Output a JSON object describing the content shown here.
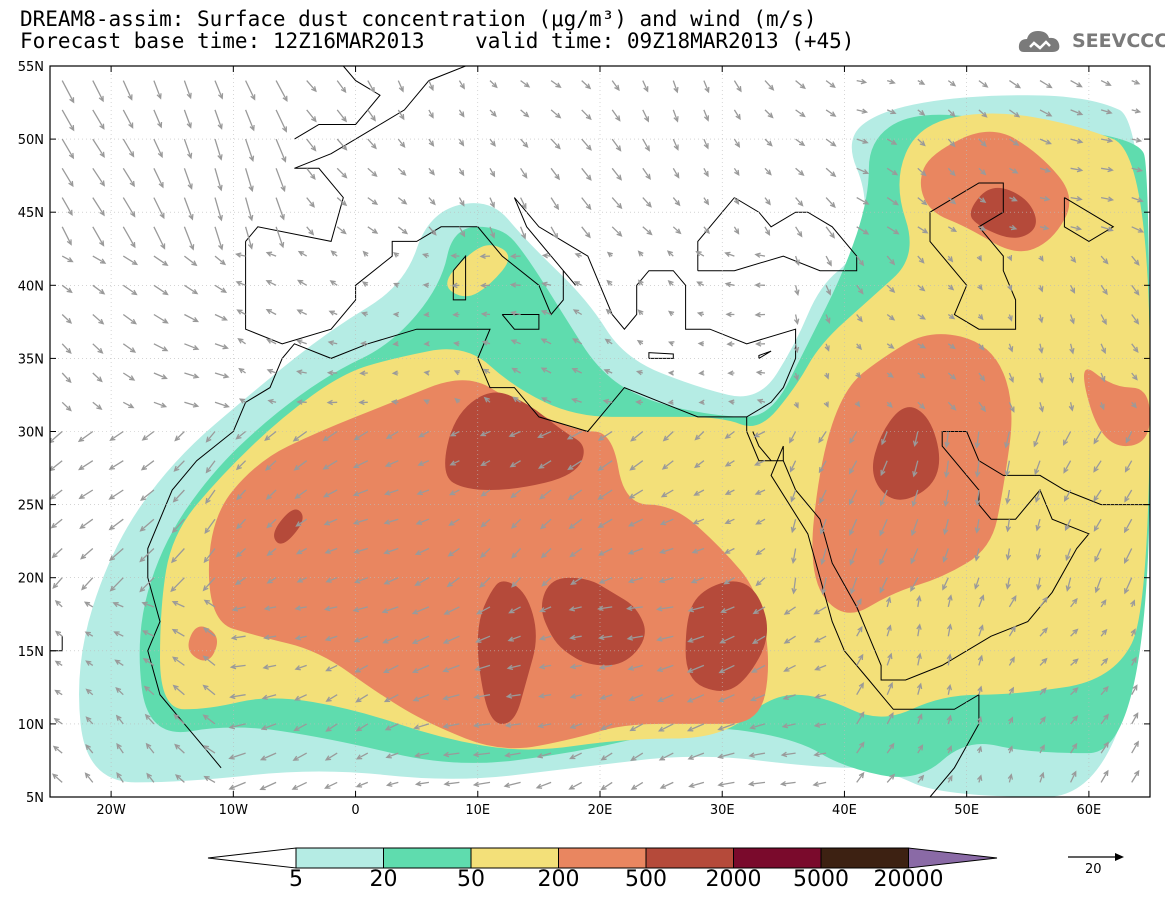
{
  "title": {
    "line1": "DREAM8-assim: Surface dust concentration (μg/m³) and wind (m/s)",
    "line2": "Forecast base time: 12Z16MAR2013    valid time: 09Z18MAR2013 (+45)"
  },
  "logo": {
    "text": "SEEVCCC",
    "icon": "cloud-icon"
  },
  "axes": {
    "lon_range": [
      -25,
      65
    ],
    "lat_range": [
      5,
      55
    ],
    "lon_ticks": [
      {
        "value": -20,
        "label": "20W"
      },
      {
        "value": -10,
        "label": "10W"
      },
      {
        "value": 0,
        "label": "0"
      },
      {
        "value": 10,
        "label": "10E"
      },
      {
        "value": 20,
        "label": "20E"
      },
      {
        "value": 30,
        "label": "30E"
      },
      {
        "value": 40,
        "label": "40E"
      },
      {
        "value": 50,
        "label": "50E"
      },
      {
        "value": 60,
        "label": "60E"
      }
    ],
    "lat_ticks": [
      {
        "value": 5,
        "label": "5N"
      },
      {
        "value": 10,
        "label": "10N"
      },
      {
        "value": 15,
        "label": "15N"
      },
      {
        "value": 20,
        "label": "20N"
      },
      {
        "value": 25,
        "label": "25N"
      },
      {
        "value": 30,
        "label": "30N"
      },
      {
        "value": 35,
        "label": "35N"
      },
      {
        "value": 40,
        "label": "40N"
      },
      {
        "value": 45,
        "label": "45N"
      },
      {
        "value": 50,
        "label": "50N"
      },
      {
        "value": 55,
        "label": "55N"
      }
    ]
  },
  "colorbar": {
    "bins": [
      {
        "color": "#b5ece4"
      },
      {
        "color": "#5fdcae"
      },
      {
        "color": "#f3e079"
      },
      {
        "color": "#e98660"
      },
      {
        "color": "#b54a3a"
      },
      {
        "color": "#7a0a2c"
      },
      {
        "color": "#3d2112"
      }
    ],
    "under_color": "#ffffff",
    "over_color": "#8a6aa6",
    "labels": [
      "5",
      "20",
      "50",
      "200",
      "500",
      "2000",
      "5000",
      "20000"
    ]
  },
  "wind_reference": {
    "label": "20",
    "icon": "arrow-right-icon"
  },
  "dust_levels": [
    {
      "color": "#b5ece4",
      "regions": [
        [
          [
            -22,
            6
          ],
          [
            -23,
            14
          ],
          [
            -20,
            22
          ],
          [
            -15,
            28
          ],
          [
            -8,
            33
          ],
          [
            -2,
            37
          ],
          [
            4,
            40
          ],
          [
            6,
            45
          ],
          [
            11,
            46
          ],
          [
            14,
            43
          ],
          [
            19,
            39
          ],
          [
            22,
            35
          ],
          [
            28,
            33
          ],
          [
            33,
            32
          ],
          [
            36,
            36
          ],
          [
            38,
            40
          ],
          [
            41,
            42
          ],
          [
            42,
            46
          ],
          [
            40,
            50
          ],
          [
            43,
            52
          ],
          [
            50,
            53
          ],
          [
            60,
            53
          ],
          [
            65,
            51
          ],
          [
            65,
            5
          ],
          [
            48,
            5
          ],
          [
            43,
            7
          ],
          [
            38,
            7
          ],
          [
            28,
            8
          ],
          [
            18,
            7
          ],
          [
            8,
            6
          ],
          [
            -3,
            7
          ],
          [
            -14,
            6
          ]
        ]
      ]
    },
    {
      "color": "#5fdcae",
      "regions": [
        [
          [
            -17,
            9
          ],
          [
            -18,
            16
          ],
          [
            -16,
            22
          ],
          [
            -12,
            27
          ],
          [
            -7,
            31
          ],
          [
            -2,
            34
          ],
          [
            3,
            36
          ],
          [
            7,
            40
          ],
          [
            8,
            44
          ],
          [
            12,
            44
          ],
          [
            14,
            42
          ],
          [
            17,
            38
          ],
          [
            20,
            34
          ],
          [
            24,
            32
          ],
          [
            30,
            31
          ],
          [
            34,
            31
          ],
          [
            37,
            36
          ],
          [
            40,
            41
          ],
          [
            42,
            46
          ],
          [
            42,
            50
          ],
          [
            46,
            52
          ],
          [
            55,
            51
          ],
          [
            64,
            50
          ],
          [
            65,
            48
          ],
          [
            65,
            8
          ],
          [
            55,
            8
          ],
          [
            50,
            9
          ],
          [
            46,
            6
          ],
          [
            40,
            7
          ],
          [
            36,
            9
          ],
          [
            28,
            10
          ],
          [
            18,
            8
          ],
          [
            8,
            7
          ],
          [
            -2,
            9
          ],
          [
            -10,
            10
          ]
        ]
      ]
    },
    {
      "color": "#f3e079",
      "regions": [
        [
          [
            -16,
            11
          ],
          [
            -16,
            18
          ],
          [
            -15,
            23
          ],
          [
            -11,
            27
          ],
          [
            -6,
            31
          ],
          [
            -1,
            34
          ],
          [
            3,
            35
          ],
          [
            9,
            36
          ],
          [
            13,
            33
          ],
          [
            18,
            31
          ],
          [
            24,
            31
          ],
          [
            30,
            31
          ],
          [
            33,
            30
          ],
          [
            36,
            33
          ],
          [
            38,
            36
          ],
          [
            42,
            39
          ],
          [
            46,
            42
          ],
          [
            44,
            47
          ],
          [
            46,
            51
          ],
          [
            52,
            52
          ],
          [
            59,
            51
          ],
          [
            65,
            49
          ],
          [
            65,
            18
          ],
          [
            62,
            13
          ],
          [
            54,
            12
          ],
          [
            48,
            12
          ],
          [
            43,
            10
          ],
          [
            38,
            12
          ],
          [
            34,
            12
          ],
          [
            30,
            9
          ],
          [
            22,
            9
          ],
          [
            14,
            8
          ],
          [
            7,
            9
          ],
          [
            0,
            11
          ],
          [
            -7,
            12
          ],
          [
            -12,
            11
          ]
        ],
        [
          [
            7,
            40
          ],
          [
            9,
            42
          ],
          [
            11,
            43
          ],
          [
            13,
            42
          ],
          [
            11,
            40
          ],
          [
            9,
            39
          ]
        ]
      ]
    },
    {
      "color": "#e98660",
      "regions": [
        [
          [
            -12,
            17
          ],
          [
            -12,
            24
          ],
          [
            -8,
            28
          ],
          [
            -3,
            30
          ],
          [
            3,
            32
          ],
          [
            9,
            34
          ],
          [
            13,
            32
          ],
          [
            18,
            30
          ],
          [
            21,
            30
          ],
          [
            22,
            25
          ],
          [
            26,
            25
          ],
          [
            30,
            22
          ],
          [
            33,
            19
          ],
          [
            34,
            14
          ],
          [
            33,
            10
          ],
          [
            28,
            10
          ],
          [
            22,
            10
          ],
          [
            18,
            9
          ],
          [
            12,
            8
          ],
          [
            6,
            10
          ],
          [
            2,
            12
          ],
          [
            -3,
            15
          ],
          [
            -8,
            16
          ]
        ],
        [
          [
            37,
            20
          ],
          [
            38,
            28
          ],
          [
            40,
            33
          ],
          [
            43,
            35
          ],
          [
            47,
            37
          ],
          [
            52,
            36
          ],
          [
            54,
            32
          ],
          [
            53,
            26
          ],
          [
            52,
            22
          ],
          [
            48,
            20
          ],
          [
            44,
            19
          ],
          [
            40,
            17
          ]
        ],
        [
          [
            46,
            47
          ],
          [
            47,
            49
          ],
          [
            52,
            51
          ],
          [
            56,
            49
          ],
          [
            59,
            46
          ],
          [
            57,
            43
          ],
          [
            54,
            42
          ],
          [
            50,
            44
          ],
          [
            47,
            45
          ]
        ],
        [
          [
            59,
            35
          ],
          [
            62,
            33
          ],
          [
            65,
            33
          ],
          [
            65,
            29
          ],
          [
            61,
            29
          ]
        ],
        [
          [
            -14,
            15
          ],
          [
            -13,
            17
          ],
          [
            -11,
            16
          ],
          [
            -12,
            14
          ]
        ]
      ]
    },
    {
      "color": "#b54a3a",
      "regions": [
        [
          [
            7,
            27
          ],
          [
            8,
            31
          ],
          [
            11,
            33
          ],
          [
            14,
            32
          ],
          [
            17,
            30
          ],
          [
            19,
            29
          ],
          [
            18,
            27
          ],
          [
            13,
            26
          ],
          [
            9,
            26
          ]
        ],
        [
          [
            10,
            17
          ],
          [
            10,
            14
          ],
          [
            11,
            10
          ],
          [
            13,
            10
          ],
          [
            14,
            13
          ],
          [
            15,
            16
          ],
          [
            14,
            19
          ],
          [
            12,
            20
          ],
          [
            11,
            19
          ]
        ],
        [
          [
            16,
            16
          ],
          [
            15,
            18
          ],
          [
            16,
            20
          ],
          [
            19,
            20
          ],
          [
            21,
            19
          ],
          [
            23,
            18
          ],
          [
            24,
            16
          ],
          [
            22,
            14
          ],
          [
            19,
            14
          ],
          [
            17,
            15
          ]
        ],
        [
          [
            27,
            13
          ],
          [
            27,
            17
          ],
          [
            28,
            19
          ],
          [
            31,
            20
          ],
          [
            33,
            19
          ],
          [
            34,
            16
          ],
          [
            32,
            13
          ],
          [
            30,
            12
          ]
        ],
        [
          [
            42,
            27
          ],
          [
            43,
            30
          ],
          [
            45,
            32
          ],
          [
            47,
            31
          ],
          [
            48,
            28
          ],
          [
            47,
            26
          ],
          [
            44,
            25
          ]
        ],
        [
          [
            50,
            45
          ],
          [
            52,
            47
          ],
          [
            55,
            46
          ],
          [
            56,
            44
          ],
          [
            54,
            43
          ],
          [
            51,
            44
          ]
        ],
        [
          [
            -7,
            23
          ],
          [
            -5,
            25
          ],
          [
            -4,
            24
          ],
          [
            -6,
            22
          ]
        ]
      ]
    }
  ]
}
